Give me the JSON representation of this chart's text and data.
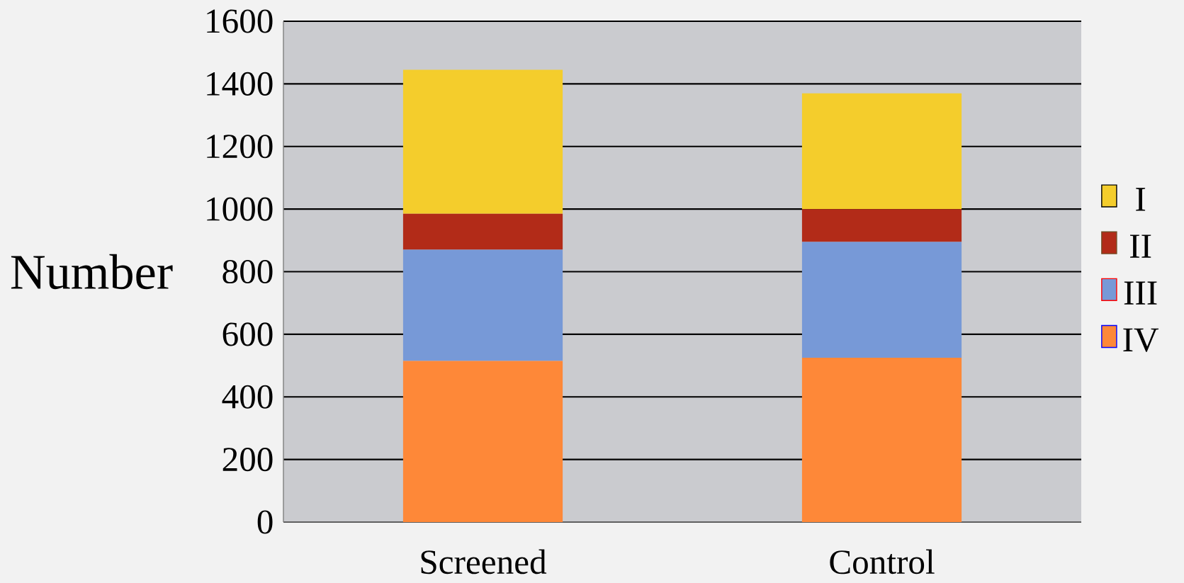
{
  "chart_data": {
    "type": "bar",
    "stacked": true,
    "ylabel": "Number",
    "categories": [
      "Screened",
      "Control"
    ],
    "series": [
      {
        "name": "IV",
        "color": "#fe8838",
        "values": [
          515,
          525
        ]
      },
      {
        "name": "III",
        "color": "#7799d7",
        "values": [
          355,
          370
        ]
      },
      {
        "name": "II",
        "color": "#b22b18",
        "values": [
          115,
          105
        ]
      },
      {
        "name": "I",
        "color": "#f4cd2c",
        "values": [
          460,
          370
        ]
      }
    ],
    "ylim": [
      0,
      1600
    ],
    "yticks": [
      0,
      200,
      400,
      600,
      800,
      1000,
      1200,
      1400,
      1600
    ],
    "grid": "y",
    "legend": "right"
  }
}
